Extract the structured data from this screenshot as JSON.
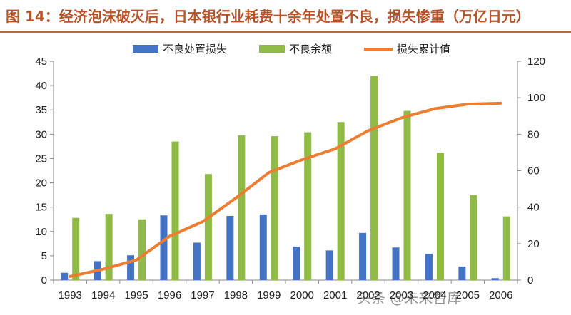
{
  "header": {
    "title": "图 14：经济泡沫破灭后，日本银行业耗费十余年处置不良，损失惨重（万亿日元）"
  },
  "watermark": "头条 @未来智库",
  "colors": {
    "title": "#b5542b",
    "bar_disposal": "#4472c4",
    "bar_balance": "#8fba45",
    "line_cumulative": "#ed7d31"
  },
  "chart_data": {
    "type": "bar",
    "categories": [
      "1993",
      "1994",
      "1995",
      "1996",
      "1997",
      "1998",
      "1999",
      "2000",
      "2001",
      "2002",
      "2003",
      "2004",
      "2005",
      "2006"
    ],
    "series": [
      {
        "name": "不良处置损失",
        "kind": "bar",
        "axis": "left",
        "values": [
          1.5,
          3.9,
          5.1,
          13.3,
          7.7,
          13.2,
          13.5,
          6.9,
          6.1,
          9.7,
          6.7,
          5.4,
          2.8,
          0.4
        ]
      },
      {
        "name": "不良余额",
        "kind": "bar",
        "axis": "left",
        "values": [
          12.8,
          13.6,
          12.5,
          28.5,
          21.8,
          29.8,
          29.6,
          30.4,
          32.5,
          42.0,
          34.8,
          26.2,
          17.5,
          13.1
        ]
      },
      {
        "name": "损失累计值",
        "kind": "line",
        "axis": "right",
        "values": [
          2,
          6,
          11,
          24,
          32,
          45,
          59,
          66,
          72,
          82,
          89,
          94,
          96.5,
          97
        ]
      }
    ],
    "ylim_left": [
      0,
      45
    ],
    "yticks_left": [
      0,
      5,
      10,
      15,
      20,
      25,
      30,
      35,
      40,
      45
    ],
    "ylim_right": [
      0,
      120
    ],
    "yticks_right": [
      0,
      20,
      40,
      60,
      80,
      100,
      120
    ],
    "legend_position": "top-center",
    "grid": false
  }
}
